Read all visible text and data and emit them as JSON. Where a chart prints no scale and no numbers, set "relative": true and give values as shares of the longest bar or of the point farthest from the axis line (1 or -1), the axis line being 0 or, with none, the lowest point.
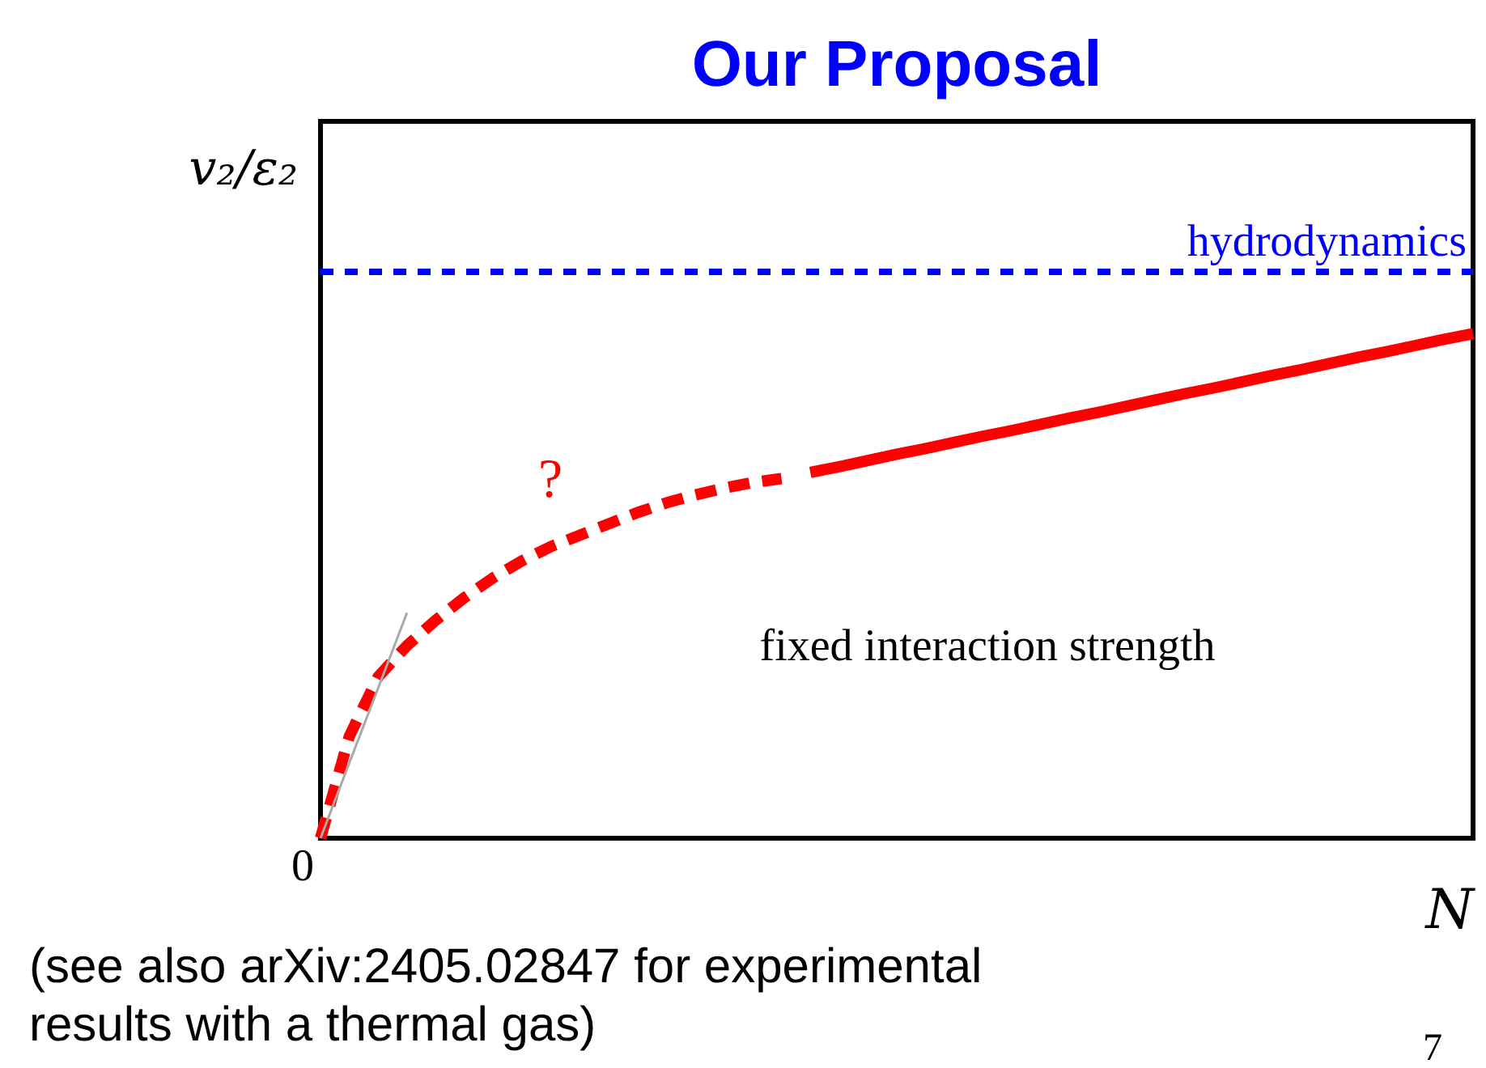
{
  "chart_data": {
    "type": "line",
    "relative": true,
    "title": "Our Proposal",
    "xlabel": "N",
    "ylabel": "v₂/ε₂",
    "grid": false,
    "categories": [
      null,
      null,
      null,
      null,
      null,
      null,
      null,
      null,
      null,
      null,
      null,
      null,
      null,
      null,
      null,
      null,
      null,
      null,
      null,
      null,
      null,
      null,
      null,
      null,
      null,
      null,
      null,
      null,
      null,
      null,
      null,
      null,
      null,
      null,
      null,
      null,
      null,
      null,
      null,
      null,
      null
    ],
    "series": [
      {
        "name": "hydrodynamics",
        "color": "#0000ff",
        "line_style": "dotted",
        "values": [
          1,
          1,
          1,
          1,
          1,
          1,
          1,
          1,
          1,
          1,
          1,
          1,
          1,
          1,
          1,
          1,
          1,
          1,
          1,
          1,
          1,
          1,
          1,
          1,
          1,
          1,
          1,
          1,
          1,
          1,
          1,
          1,
          1,
          1,
          1,
          1,
          1,
          1,
          1,
          1,
          1
        ]
      },
      {
        "color": "#ff0000",
        "line_style": "dashed",
        "values": [
          0,
          0.18,
          0.285,
          0.34,
          0.385,
          0.425,
          0.46,
          0.49,
          0.515,
          0.535,
          0.555,
          0.575,
          0.592,
          0.606,
          0.618,
          0.628,
          0.635,
          null,
          null,
          null,
          null,
          null,
          null,
          null,
          null,
          null,
          null,
          null,
          null,
          null,
          null,
          null,
          null,
          null,
          null,
          null,
          null,
          null,
          null,
          null,
          null
        ]
      },
      {
        "color": "#ff0000",
        "line_style": "solid",
        "values": [
          null,
          null,
          null,
          null,
          null,
          null,
          null,
          null,
          null,
          null,
          null,
          null,
          null,
          null,
          null,
          null,
          null,
          0.646,
          0.656,
          0.667,
          0.678,
          0.688,
          0.699,
          0.71,
          0.72,
          0.731,
          0.742,
          0.752,
          0.763,
          0.774,
          0.785,
          0.795,
          0.806,
          0.817,
          0.827,
          0.838,
          0.849,
          0.859,
          0.87,
          0.881,
          0.891
        ]
      },
      {
        "color": "#aaaaaa",
        "line_style": "solid",
        "values": [
          0,
          0.133,
          0.265,
          0.398,
          null,
          null,
          null,
          null,
          null,
          null,
          null,
          null,
          null,
          null,
          null,
          null,
          null,
          null,
          null,
          null,
          null,
          null,
          null,
          null,
          null,
          null,
          null,
          null,
          null,
          null,
          null,
          null,
          null,
          null,
          null,
          null,
          null,
          null,
          null,
          null,
          null
        ]
      }
    ],
    "annotations": [
      "?",
      "fixed interaction strength",
      "0",
      "(see also arXiv:2405.02847 for experimental results with a thermal gas)",
      "7"
    ]
  }
}
